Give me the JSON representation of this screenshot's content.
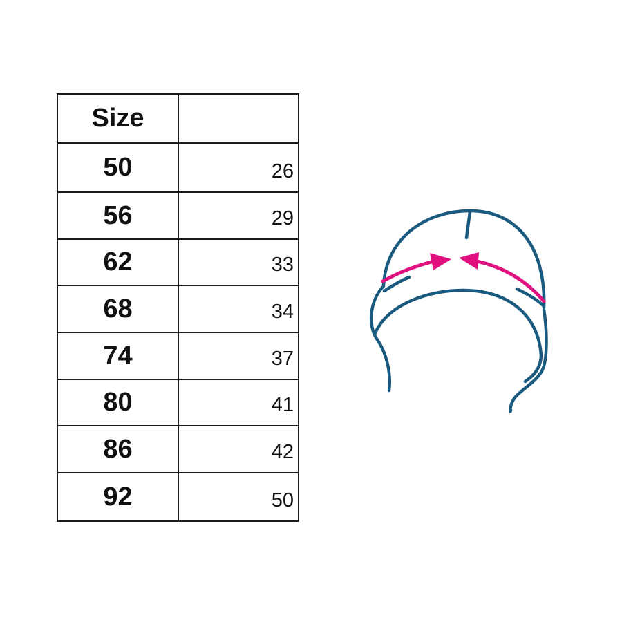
{
  "table": {
    "header": {
      "size": "Size",
      "measure": ""
    },
    "rows": [
      {
        "size": "50",
        "value": "26"
      },
      {
        "size": "56",
        "value": "29"
      },
      {
        "size": "62",
        "value": "33"
      },
      {
        "size": "68",
        "value": "34"
      },
      {
        "size": "74",
        "value": "37"
      },
      {
        "size": "80",
        "value": "41"
      },
      {
        "size": "86",
        "value": "42"
      },
      {
        "size": "92",
        "value": "50"
      }
    ]
  },
  "illustration": {
    "icon": "hat-head-circumference-icon",
    "outline_color": "#1b5a7f",
    "arrow_color": "#e0117f"
  }
}
